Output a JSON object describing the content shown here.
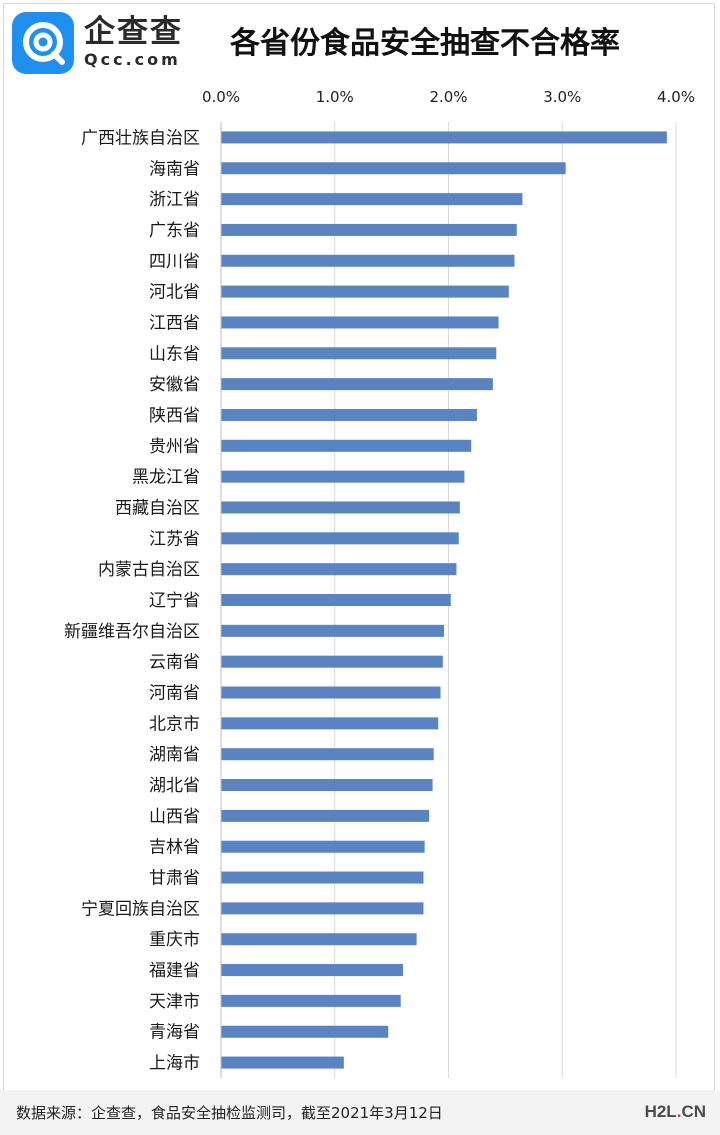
{
  "header": {
    "logo_name": "企查查",
    "logo_domain": "Qcc.com",
    "title": "各省份食品安全抽查不合格率"
  },
  "footer": {
    "source": "数据来源：企查查，食品安全抽检监测司，截至2021年3月12日",
    "watermark_left": "H2L",
    "watermark_dot": ".",
    "watermark_right": "CN"
  },
  "colors": {
    "bar": "#5a83c2",
    "grid": "#d9d9d9",
    "brand": "#1f8ff0"
  },
  "chart_data": {
    "type": "bar",
    "orientation": "horizontal",
    "categories": [
      "广西壮族自治区",
      "海南省",
      "浙江省",
      "广东省",
      "四川省",
      "河北省",
      "江西省",
      "山东省",
      "安徽省",
      "陕西省",
      "贵州省",
      "黑龙江省",
      "西藏自治区",
      "江苏省",
      "内蒙古自治区",
      "辽宁省",
      "新疆维吾尔自治区",
      "云南省",
      "河南省",
      "北京市",
      "湖南省",
      "湖北省",
      "山西省",
      "吉林省",
      "甘肃省",
      "宁夏回族自治区",
      "重庆市",
      "福建省",
      "天津市",
      "青海省",
      "上海市"
    ],
    "values": [
      3.92,
      3.03,
      2.65,
      2.6,
      2.58,
      2.53,
      2.44,
      2.42,
      2.39,
      2.25,
      2.2,
      2.14,
      2.1,
      2.09,
      2.07,
      2.02,
      1.96,
      1.95,
      1.93,
      1.91,
      1.87,
      1.86,
      1.83,
      1.79,
      1.78,
      1.78,
      1.72,
      1.6,
      1.58,
      1.47,
      1.08
    ],
    "xticks": [
      "0.0%",
      "1.0%",
      "2.0%",
      "3.0%",
      "4.0%"
    ],
    "xlim": [
      0,
      4.0
    ],
    "grid": true,
    "axis_position": "top"
  }
}
